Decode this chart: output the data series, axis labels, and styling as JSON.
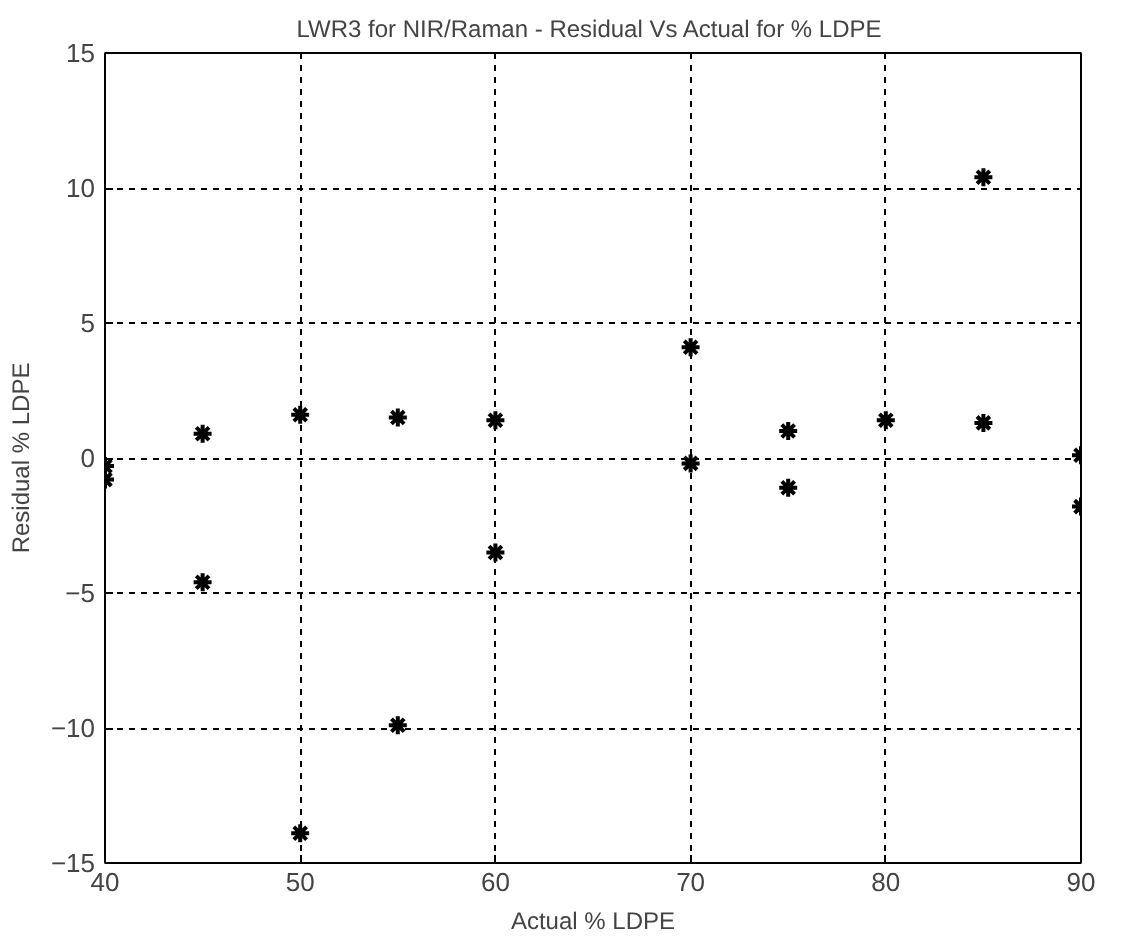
{
  "chart_data": {
    "type": "scatter",
    "title": "LWR3 for NIR/Raman - Residual Vs  Actual for % LDPE",
    "xlabel": "Actual % LDPE",
    "ylabel": "Residual % LDPE",
    "x": [
      40,
      40,
      45,
      45,
      50,
      50,
      55,
      55,
      60,
      60,
      70,
      70,
      75,
      75,
      80,
      85,
      85,
      90,
      90
    ],
    "series": [
      {
        "color": "#000000",
        "values": [
          -0.3,
          -0.8,
          0.9,
          -4.6,
          1.6,
          -13.9,
          1.5,
          -9.9,
          1.4,
          -3.5,
          4.1,
          -0.2,
          1.0,
          -1.1,
          1.4,
          10.4,
          1.3,
          0.1,
          -1.8
        ]
      }
    ],
    "xlim": [
      40,
      90
    ],
    "xticks": [
      40,
      50,
      60,
      70,
      80,
      90
    ],
    "ylim": [
      -15,
      15
    ],
    "yticks": [
      -15,
      -10,
      -5,
      0,
      5,
      10,
      15
    ],
    "grid": true,
    "marker": "cross"
  }
}
